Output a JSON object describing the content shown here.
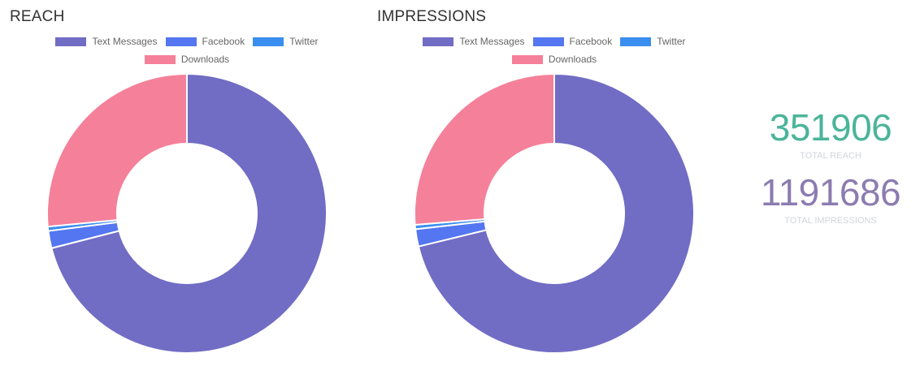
{
  "colors": {
    "text_messages": "#716cc4",
    "facebook": "#5476f0",
    "twitter": "#3a8eef",
    "downloads": "#f5809a",
    "total_reach": "#4bb49a",
    "total_impressions": "#8c7cb0",
    "label_muted": "#d2d5dc"
  },
  "chart_data": [
    {
      "type": "pie",
      "variant": "doughnut",
      "title": "REACH",
      "legend": [
        "Text Messages",
        "Facebook",
        "Twitter",
        "Downloads"
      ],
      "legend_position": "top",
      "labels": [
        "Text Messages",
        "Facebook",
        "Twitter",
        "Downloads"
      ],
      "values": [
        71.0,
        2.0,
        0.5,
        26.5
      ],
      "value_unit": "approximate percent of total"
    },
    {
      "type": "pie",
      "variant": "doughnut",
      "title": "IMPRESSIONS",
      "legend": [
        "Text Messages",
        "Facebook",
        "Twitter",
        "Downloads"
      ],
      "legend_position": "top",
      "labels": [
        "Text Messages",
        "Facebook",
        "Twitter",
        "Downloads"
      ],
      "values": [
        71.2,
        2.0,
        0.5,
        26.3
      ],
      "value_unit": "approximate percent of total"
    }
  ],
  "totals": {
    "reach_value": "351906",
    "reach_label": "TOTAL REACH",
    "impressions_value": "1191686",
    "impressions_label": "TOTAL IMPRESSIONS"
  }
}
